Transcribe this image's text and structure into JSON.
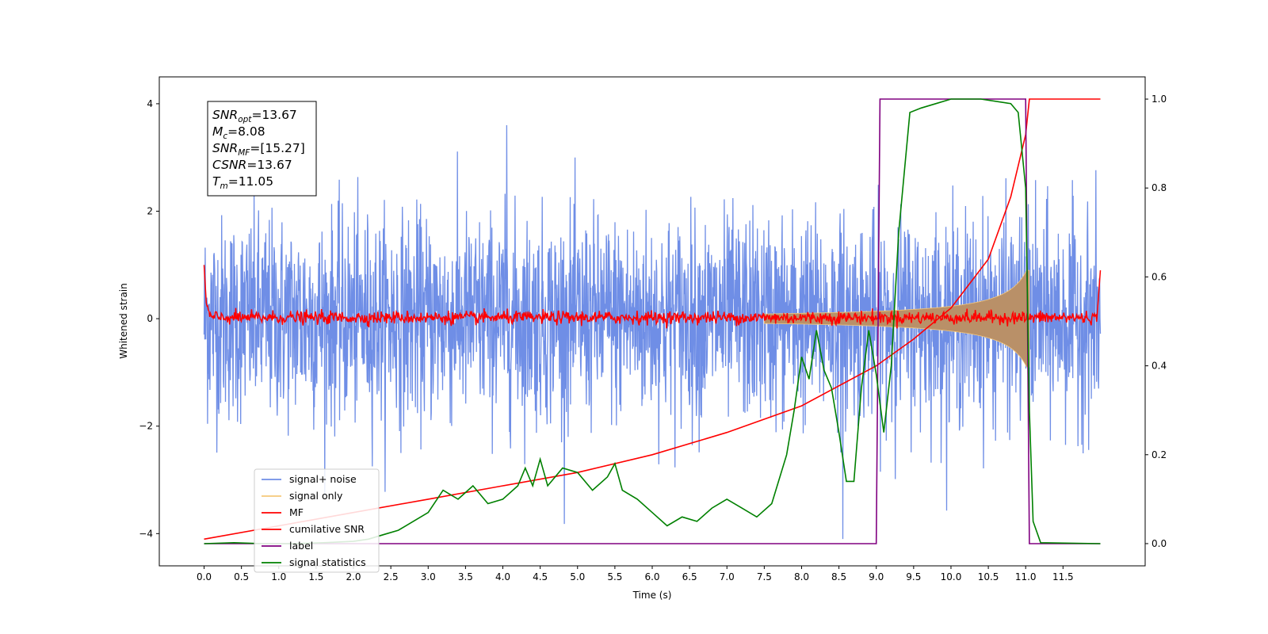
{
  "chart_data": {
    "type": "line",
    "xlabel": "Time (s)",
    "ylabel": "Whitened strain",
    "xlim": [
      -0.6,
      12.6
    ],
    "ylim": [
      -4.6,
      4.5
    ],
    "y2lim": [
      -0.05,
      1.05
    ],
    "x_ticks": [
      "0.0",
      "0.5",
      "1.0",
      "1.5",
      "2.0",
      "2.5",
      "3.0",
      "3.5",
      "4.0",
      "4.5",
      "5.0",
      "5.5",
      "6.0",
      "6.5",
      "7.0",
      "7.5",
      "8.0",
      "8.5",
      "9.0",
      "9.5",
      "10.0",
      "10.5",
      "11.0",
      "11.5"
    ],
    "y_ticks": [
      "4",
      "2",
      "0",
      "−2",
      "−4"
    ],
    "y2_ticks": [
      "1.0",
      "0.8",
      "0.6",
      "0.4",
      "0.2",
      "0.0"
    ],
    "annotation": {
      "lines": [
        {
          "base": "SNR",
          "sub": "opt",
          "value": "=13.67"
        },
        {
          "base": "M",
          "sub": "c",
          "value": "=8.08"
        },
        {
          "base": "SNR",
          "sub": "MF",
          "value": "=[15.27]"
        },
        {
          "base": "CSNR",
          "sub": "",
          "value": "=13.67"
        },
        {
          "base": "T",
          "sub": "m",
          "value": "=11.05"
        }
      ]
    },
    "legend_position": "lower-left",
    "series": [
      {
        "name": "signal+ noise",
        "color": "#6f8ee6",
        "axis": "left",
        "kind": "noise",
        "x_range": [
          0.0,
          12.0
        ],
        "std": 0.95,
        "max_peak": 3.6,
        "min_peak": -4.1
      },
      {
        "name": "signal only",
        "color": "#f5c87a",
        "axis": "left",
        "kind": "chirp",
        "x_range": [
          0.0,
          11.05
        ],
        "amplitude_end": 0.9
      },
      {
        "name": "MF",
        "color": "#ff0000",
        "axis": "left",
        "kind": "mf",
        "x_range": [
          0.0,
          12.0
        ],
        "start_value": 1.0,
        "end_value": 0.9
      },
      {
        "name": "cumilative SNR",
        "color": "#ff0000",
        "axis": "right",
        "points": [
          [
            0.0,
            0.01
          ],
          [
            1.0,
            0.04
          ],
          [
            2.0,
            0.07
          ],
          [
            3.0,
            0.1
          ],
          [
            4.0,
            0.13
          ],
          [
            5.0,
            0.16
          ],
          [
            6.0,
            0.2
          ],
          [
            7.0,
            0.25
          ],
          [
            8.0,
            0.31
          ],
          [
            9.0,
            0.4
          ],
          [
            9.5,
            0.46
          ],
          [
            10.0,
            0.53
          ],
          [
            10.5,
            0.64
          ],
          [
            10.8,
            0.78
          ],
          [
            11.0,
            0.92
          ],
          [
            11.05,
            1.0
          ],
          [
            12.0,
            1.0
          ]
        ]
      },
      {
        "name": "label",
        "color": "#800080",
        "axis": "right",
        "points": [
          [
            0.0,
            0.0
          ],
          [
            9.0,
            0.0
          ],
          [
            9.05,
            1.0
          ],
          [
            11.0,
            1.0
          ],
          [
            11.05,
            0.0
          ],
          [
            12.0,
            0.0
          ]
        ]
      },
      {
        "name": "signal statistics",
        "color": "#008000",
        "axis": "right",
        "points": [
          [
            0.0,
            0.0
          ],
          [
            0.4,
            0.002
          ],
          [
            0.8,
            0.0
          ],
          [
            1.2,
            0.0
          ],
          [
            1.6,
            0.002
          ],
          [
            2.0,
            0.005
          ],
          [
            2.2,
            0.01
          ],
          [
            2.4,
            0.02
          ],
          [
            2.6,
            0.03
          ],
          [
            2.8,
            0.05
          ],
          [
            3.0,
            0.07
          ],
          [
            3.2,
            0.12
          ],
          [
            3.4,
            0.1
          ],
          [
            3.6,
            0.13
          ],
          [
            3.8,
            0.09
          ],
          [
            4.0,
            0.1
          ],
          [
            4.2,
            0.13
          ],
          [
            4.3,
            0.17
          ],
          [
            4.4,
            0.13
          ],
          [
            4.5,
            0.19
          ],
          [
            4.6,
            0.13
          ],
          [
            4.8,
            0.17
          ],
          [
            5.0,
            0.16
          ],
          [
            5.2,
            0.12
          ],
          [
            5.4,
            0.15
          ],
          [
            5.5,
            0.18
          ],
          [
            5.6,
            0.12
          ],
          [
            5.8,
            0.1
          ],
          [
            6.0,
            0.07
          ],
          [
            6.2,
            0.04
          ],
          [
            6.4,
            0.06
          ],
          [
            6.6,
            0.05
          ],
          [
            6.8,
            0.08
          ],
          [
            7.0,
            0.1
          ],
          [
            7.2,
            0.08
          ],
          [
            7.4,
            0.06
          ],
          [
            7.6,
            0.09
          ],
          [
            7.8,
            0.2
          ],
          [
            7.9,
            0.3
          ],
          [
            8.0,
            0.42
          ],
          [
            8.1,
            0.37
          ],
          [
            8.2,
            0.48
          ],
          [
            8.3,
            0.39
          ],
          [
            8.4,
            0.35
          ],
          [
            8.5,
            0.25
          ],
          [
            8.6,
            0.14
          ],
          [
            8.7,
            0.14
          ],
          [
            8.8,
            0.35
          ],
          [
            8.9,
            0.48
          ],
          [
            9.0,
            0.38
          ],
          [
            9.1,
            0.25
          ],
          [
            9.2,
            0.4
          ],
          [
            9.3,
            0.7
          ],
          [
            9.45,
            0.97
          ],
          [
            9.6,
            0.98
          ],
          [
            9.8,
            0.99
          ],
          [
            10.0,
            1.0
          ],
          [
            10.4,
            1.0
          ],
          [
            10.8,
            0.99
          ],
          [
            10.9,
            0.97
          ],
          [
            11.0,
            0.8
          ],
          [
            11.05,
            0.3
          ],
          [
            11.1,
            0.05
          ],
          [
            11.2,
            0.002
          ],
          [
            12.0,
            0.0
          ]
        ]
      }
    ]
  }
}
